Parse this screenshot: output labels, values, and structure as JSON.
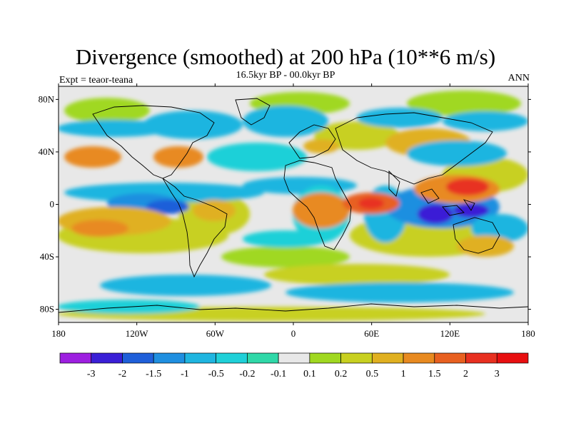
{
  "title": "Divergence (smoothed) at 200 hPa (10**6 m/s)",
  "subtitle_left": "Expt = teaor-teana",
  "subtitle_center": "16.5kyr BP - 00.0kyr BP",
  "subtitle_right": "ANN",
  "lat_ticks": [
    "80N",
    "40N",
    "0",
    "40S",
    "80S"
  ],
  "lon_ticks": [
    "180",
    "120W",
    "60W",
    "0",
    "60E",
    "120E",
    "180"
  ],
  "colorbar": {
    "labels": [
      "-3",
      "-2",
      "-1.5",
      "-1",
      "-0.5",
      "-0.2",
      "-0.1",
      "0.1",
      "0.2",
      "0.5",
      "1",
      "1.5",
      "2",
      "3"
    ],
    "colors": [
      "#9d1fe0",
      "#3a1fd6",
      "#1f5fd9",
      "#1f8fe0",
      "#1fb5e0",
      "#1fd0d8",
      "#2fd8a8",
      "#e8e8e8",
      "#a0d820",
      "#c8d020",
      "#e0b020",
      "#e88a20",
      "#e86020",
      "#e83020",
      "#e80f10"
    ]
  },
  "map_colors": {
    "ocean_bg": "#e8e8e8",
    "coast": "#000000"
  }
}
